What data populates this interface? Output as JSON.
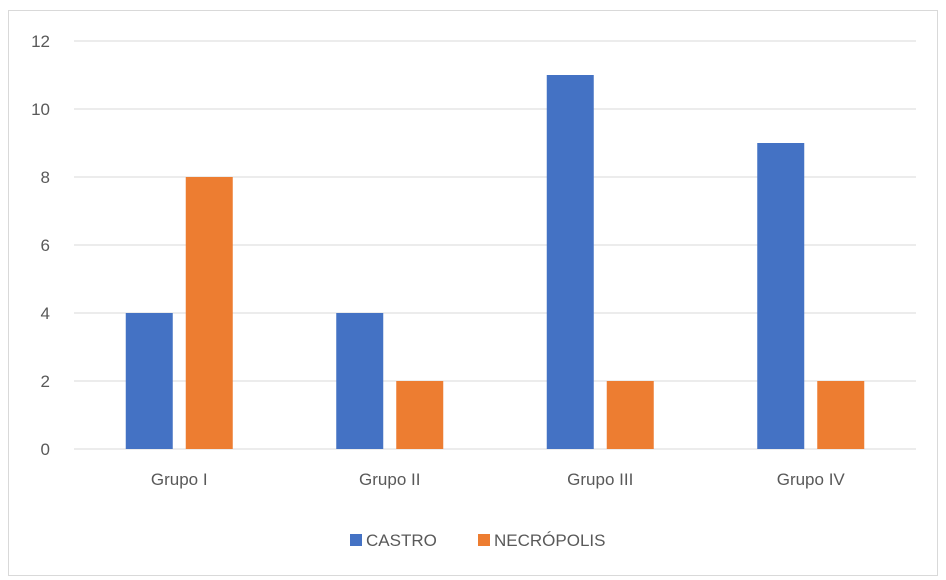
{
  "chart_data": {
    "type": "bar",
    "title": "",
    "xlabel": "",
    "ylabel": "",
    "categories": [
      "Grupo I",
      "Grupo II",
      "Grupo III",
      "Grupo IV"
    ],
    "series": [
      {
        "name": "CASTRO",
        "values": [
          4,
          4,
          11,
          9
        ],
        "color": "#4472c4"
      },
      {
        "name": "NECRÓPOLIS",
        "values": [
          8,
          2,
          2,
          2
        ],
        "color": "#ed7d31"
      }
    ],
    "ylim": [
      0,
      12
    ],
    "yticks": [
      0,
      2,
      4,
      6,
      8,
      10,
      12
    ],
    "grid": true,
    "legend_position": "bottom"
  }
}
